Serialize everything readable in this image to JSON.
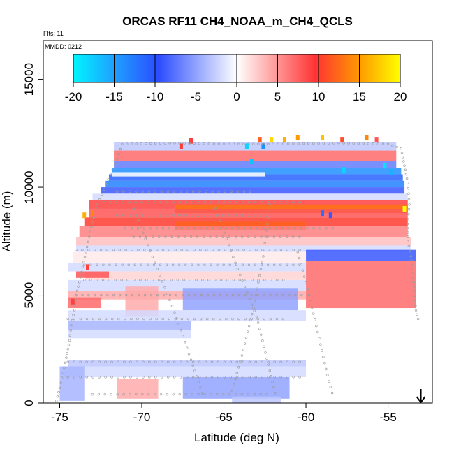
{
  "chart_data": {
    "type": "heatmap",
    "title": "ORCAS RF11 CH4_NOAA_m_CH4_QCLS",
    "subtitle_flights": "Flts: 11",
    "subtitle_date": "MMDD: 0212",
    "xlabel": "Latitude (deg N)",
    "ylabel": "Altitude (m)",
    "xlim": [
      -76,
      -52.3
    ],
    "ylim": [
      0,
      16800
    ],
    "x_ticks": [
      -75,
      -70,
      -65,
      -60,
      -55
    ],
    "x_tick_labels": [
      "-75",
      "-70",
      "-65",
      "-60",
      "-55"
    ],
    "y_ticks": [
      0,
      5000,
      10000,
      15000
    ],
    "y_tick_labels": [
      "0",
      "5000",
      "10000",
      "15000"
    ],
    "colorbar": {
      "range": [
        -20,
        20
      ],
      "ticks": [
        -20,
        -15,
        -10,
        -5,
        0,
        5,
        10,
        15,
        20
      ],
      "tick_labels": [
        "-20",
        "-15",
        "-10",
        "-5",
        "0",
        "5",
        "10",
        "15",
        "20"
      ],
      "colors": [
        "#00f5ff",
        "#1fa0ff",
        "#2b4cff",
        "#ffffff",
        "#ff3333",
        "#ff9900",
        "#ffff00"
      ]
    },
    "grid": false,
    "marker": {
      "latitude": -53,
      "altitude": 0,
      "symbol": "down-arrow"
    },
    "bands": [
      {
        "lat": [
          -71.7,
          -54.5
        ],
        "alt": [
          11700,
          12100
        ],
        "value": -3
      },
      {
        "lat": [
          -71.7,
          -54.5
        ],
        "alt": [
          11200,
          11700
        ],
        "value": 7
      },
      {
        "lat": [
          -71.7,
          -54.5
        ],
        "alt": [
          10900,
          11200
        ],
        "value": -7
      },
      {
        "lat": [
          -71.8,
          -54.2
        ],
        "alt": [
          10600,
          10900
        ],
        "value": -14
      },
      {
        "lat": [
          -72.0,
          -54.1
        ],
        "alt": [
          10300,
          10600
        ],
        "value": -11
      },
      {
        "lat": [
          -71.8,
          -62.5
        ],
        "alt": [
          10500,
          10700
        ],
        "value": 0
      },
      {
        "lat": [
          -72.2,
          -54.0
        ],
        "alt": [
          10000,
          10300
        ],
        "value": -13
      },
      {
        "lat": [
          -72.5,
          -54.0
        ],
        "alt": [
          9700,
          10000
        ],
        "value": -9
      },
      {
        "lat": [
          -73.0,
          -53.8
        ],
        "alt": [
          9400,
          9700
        ],
        "value": -2
      },
      {
        "lat": [
          -73.2,
          -53.8
        ],
        "alt": [
          9000,
          9400
        ],
        "value": 9
      },
      {
        "lat": [
          -68.0,
          -53.8
        ],
        "alt": [
          8800,
          9200
        ],
        "value": 13
      },
      {
        "lat": [
          -73.2,
          -53.8
        ],
        "alt": [
          8600,
          9000
        ],
        "value": 8
      },
      {
        "lat": [
          -73.5,
          -53.8
        ],
        "alt": [
          8200,
          8600
        ],
        "value": 10
      },
      {
        "lat": [
          -68.0,
          -60.0
        ],
        "alt": [
          8000,
          8400
        ],
        "value": 12
      },
      {
        "lat": [
          -73.8,
          -53.8
        ],
        "alt": [
          7700,
          8200
        ],
        "value": 6
      },
      {
        "lat": [
          -74.0,
          -53.6
        ],
        "alt": [
          7300,
          7700
        ],
        "value": 3
      },
      {
        "lat": [
          -74.0,
          -53.6
        ],
        "alt": [
          7000,
          7300
        ],
        "value": -2
      },
      {
        "lat": [
          -60.0,
          -53.3
        ],
        "alt": [
          6600,
          7100
        ],
        "value": -9
      },
      {
        "lat": [
          -74.2,
          -60.0
        ],
        "alt": [
          6500,
          7000
        ],
        "value": 1
      },
      {
        "lat": [
          -60.0,
          -53.3
        ],
        "alt": [
          4400,
          6600
        ],
        "value": 7
      },
      {
        "lat": [
          -74.5,
          -60.0
        ],
        "alt": [
          6100,
          6500
        ],
        "value": -2
      },
      {
        "lat": [
          -73.5,
          -60.0
        ],
        "alt": [
          5700,
          6100
        ],
        "value": 2
      },
      {
        "lat": [
          -74.0,
          -72.0
        ],
        "alt": [
          5800,
          6100
        ],
        "value": 8
      },
      {
        "lat": [
          -74.5,
          -60.0
        ],
        "alt": [
          5200,
          5700
        ],
        "value": -2
      },
      {
        "lat": [
          -74.5,
          -60.0
        ],
        "alt": [
          4800,
          5200
        ],
        "value": 4
      },
      {
        "lat": [
          -67.5,
          -60.5
        ],
        "alt": [
          4300,
          5300
        ],
        "value": -5
      },
      {
        "lat": [
          -71.0,
          -69.0
        ],
        "alt": [
          4000,
          5400
        ],
        "value": 4
      },
      {
        "lat": [
          -74.5,
          -72.5
        ],
        "alt": [
          4400,
          4900
        ],
        "value": 7
      },
      {
        "lat": [
          -74.5,
          -60.0
        ],
        "alt": [
          3800,
          4300
        ],
        "value": -2
      },
      {
        "lat": [
          -74.5,
          -67.0
        ],
        "alt": [
          3400,
          3800
        ],
        "value": -4
      },
      {
        "lat": [
          -74.5,
          -67.0
        ],
        "alt": [
          3000,
          3400
        ],
        "value": -2
      },
      {
        "lat": [
          -74.5,
          -60.0
        ],
        "alt": [
          1700,
          2000
        ],
        "value": -3
      },
      {
        "lat": [
          -74.8,
          -60.0
        ],
        "alt": [
          1200,
          1700
        ],
        "value": -2
      },
      {
        "lat": [
          -67.5,
          -61.0
        ],
        "alt": [
          200,
          1200
        ],
        "value": -5
      },
      {
        "lat": [
          -71.5,
          -69.0
        ],
        "alt": [
          200,
          1100
        ],
        "value": 4
      },
      {
        "lat": [
          -75.0,
          -73.5
        ],
        "alt": [
          100,
          1700
        ],
        "value": -4
      },
      {
        "lat": [
          -64.5,
          -61.5
        ],
        "alt": [
          0,
          300
        ],
        "value": -3
      }
    ],
    "cells": [
      {
        "lat": -62.8,
        "alt": 12200,
        "value": 12
      },
      {
        "lat": -62.1,
        "alt": 12200,
        "value": 18
      },
      {
        "lat": -61.3,
        "alt": 12200,
        "value": 16
      },
      {
        "lat": -60.5,
        "alt": 12300,
        "value": 15
      },
      {
        "lat": -59.0,
        "alt": 12300,
        "value": 17
      },
      {
        "lat": -57.8,
        "alt": 12200,
        "value": 11
      },
      {
        "lat": -56.3,
        "alt": 12300,
        "value": 14
      },
      {
        "lat": -55.7,
        "alt": 12200,
        "value": 8
      },
      {
        "lat": -63.6,
        "alt": 11900,
        "value": -18
      },
      {
        "lat": -62.6,
        "alt": 11900,
        "value": -14
      },
      {
        "lat": -67.0,
        "alt": 12150,
        "value": 9
      },
      {
        "lat": -67.6,
        "alt": 11900,
        "value": 10
      },
      {
        "lat": -55.2,
        "alt": 11000,
        "value": -19
      },
      {
        "lat": -54.8,
        "alt": 10700,
        "value": -16
      },
      {
        "lat": -63.3,
        "alt": 11200,
        "value": -17
      },
      {
        "lat": -57.7,
        "alt": 10800,
        "value": -18
      },
      {
        "lat": -59.0,
        "alt": 8800,
        "value": -12
      },
      {
        "lat": -58.5,
        "alt": 8700,
        "value": -9
      },
      {
        "lat": -73.5,
        "alt": 8700,
        "value": 16
      },
      {
        "lat": -73.0,
        "alt": 8800,
        "value": 14
      },
      {
        "lat": -54.0,
        "alt": 9000,
        "value": 20
      },
      {
        "lat": -73.3,
        "alt": 6300,
        "value": 9
      },
      {
        "lat": -74.2,
        "alt": 4700,
        "value": 9
      }
    ],
    "flight_track": [
      [
        -75.2,
        100
      ],
      [
        -75.0,
        700
      ],
      [
        -74.8,
        1400
      ],
      [
        -74.6,
        2100
      ],
      [
        -74.4,
        2900
      ],
      [
        -74.3,
        3600
      ],
      [
        -74.1,
        4300
      ],
      [
        -74.0,
        5000
      ],
      [
        -73.8,
        5600
      ],
      [
        -73.6,
        6300
      ],
      [
        -73.4,
        7000
      ],
      [
        -73.2,
        7700
      ],
      [
        -73.0,
        8400
      ],
      [
        -72.7,
        9200
      ],
      [
        -72.3,
        9900
      ],
      [
        -71.9,
        10600
      ],
      [
        -71.5,
        11300
      ],
      [
        -71.2,
        12000
      ],
      [
        -68.0,
        12050
      ],
      [
        -65.0,
        12000
      ],
      [
        -62.0,
        12000
      ],
      [
        -58.0,
        12050
      ],
      [
        -55.0,
        12000
      ],
      [
        -54.2,
        11800
      ],
      [
        -54.0,
        11000
      ],
      [
        -53.8,
        10200
      ],
      [
        -53.7,
        9200
      ],
      [
        -53.8,
        8300
      ],
      [
        -53.8,
        7500
      ],
      [
        -53.6,
        6800
      ],
      [
        -53.5,
        6000
      ],
      [
        -53.4,
        5200
      ],
      [
        -53.3,
        4300
      ],
      [
        -53.1,
        3700
      ]
    ],
    "track_ranges": [
      {
        "lat": [
          -71.5,
          -63.0
        ],
        "alt": 9800
      },
      {
        "lat": [
          -72.3,
          -60.0
        ],
        "alt": 9300
      },
      {
        "lat": [
          -71.5,
          -62.0
        ],
        "alt": 8700
      },
      {
        "lat": [
          -71.0,
          -58.0
        ],
        "alt": 8100
      },
      {
        "lat": [
          -70.5,
          -60.0
        ],
        "alt": 7700
      },
      {
        "lat": [
          -74.0,
          -60.0
        ],
        "alt": 7100
      },
      {
        "lat": [
          -73.5,
          -60.0
        ],
        "alt": 6400
      },
      {
        "lat": [
          -73.5,
          -61.0
        ],
        "alt": 5700
      },
      {
        "lat": [
          -74.0,
          -59.5
        ],
        "alt": 5000
      },
      {
        "lat": [
          -74.5,
          -61.0
        ],
        "alt": 3900
      },
      {
        "lat": [
          -74.5,
          -60.0
        ],
        "alt": 1900
      },
      {
        "lat": [
          -74.5,
          -60.0
        ],
        "alt": 1200
      },
      {
        "lat": [
          -73.0,
          -62.0
        ],
        "alt": 400
      }
    ],
    "track_diagonals": [
      [
        [
          -70.5,
          9000
        ],
        [
          -69.2,
          6500
        ],
        [
          -68.0,
          4200
        ],
        [
          -67.0,
          2000
        ],
        [
          -66.2,
          200
        ]
      ],
      [
        [
          -65.5,
          9000
        ],
        [
          -64.3,
          6500
        ],
        [
          -63.0,
          4000
        ],
        [
          -62.2,
          1500
        ],
        [
          -61.8,
          200
        ]
      ],
      [
        [
          -62.2,
          9200
        ],
        [
          -62.6,
          6800
        ],
        [
          -63.2,
          4400
        ],
        [
          -63.9,
          2200
        ],
        [
          -64.6,
          300
        ]
      ],
      [
        [
          -60.5,
          7000
        ],
        [
          -59.8,
          5000
        ],
        [
          -59.2,
          3000
        ],
        [
          -58.6,
          1000
        ],
        [
          -58.3,
          200
        ]
      ]
    ]
  }
}
